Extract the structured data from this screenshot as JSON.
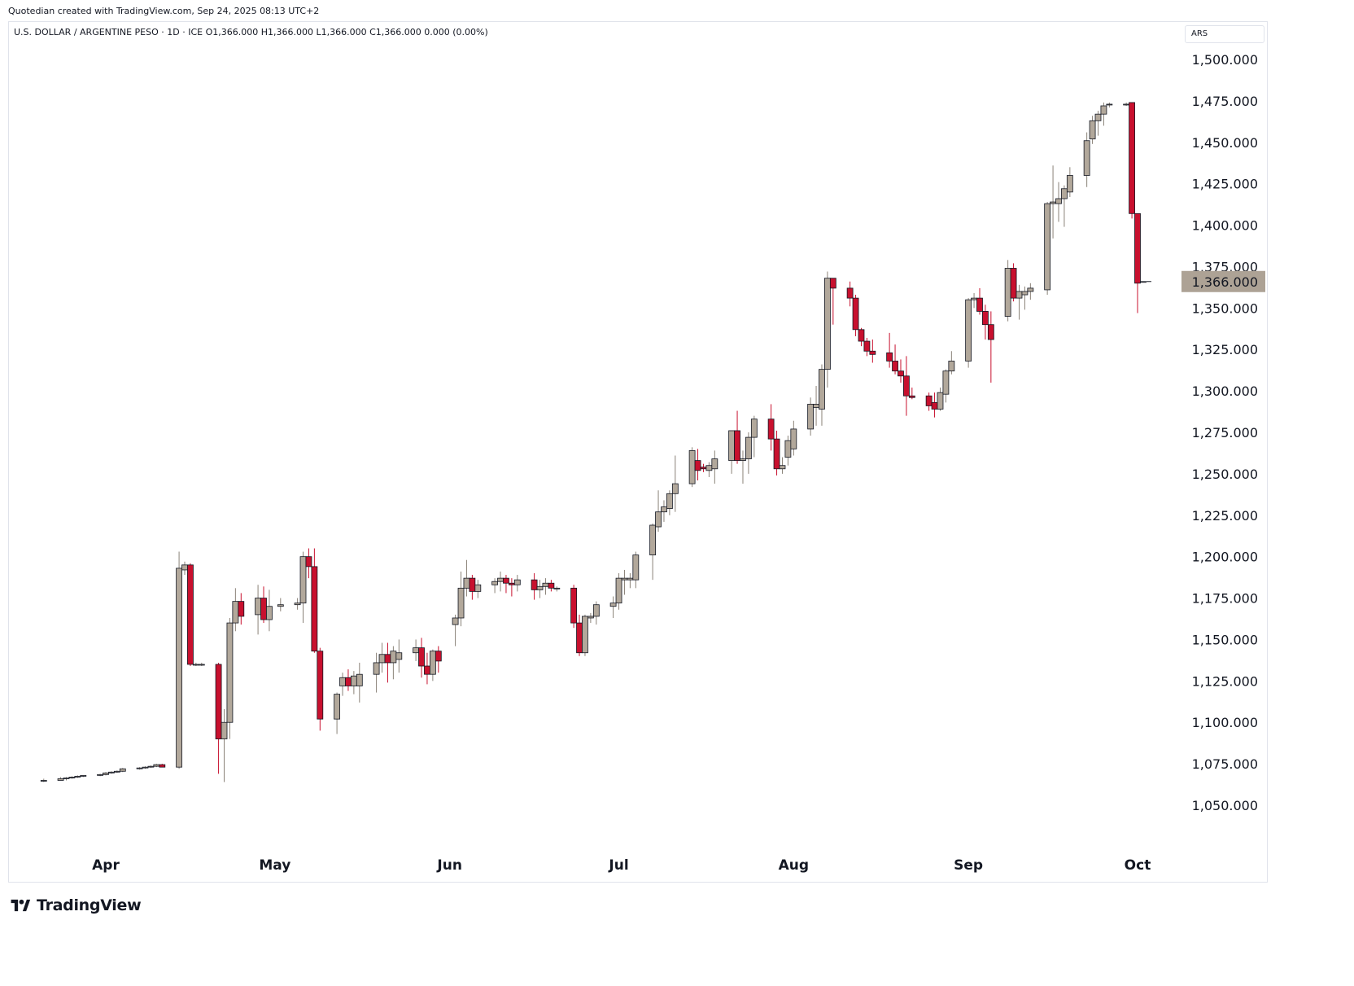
{
  "header": {
    "credit": "Quotedian created with TradingView.com, Sep 24, 2025 08:13 UTC+2",
    "legend": "U.S. DOLLAR / ARGENTINE PESO · 1D · ICE   O1,366.000   H1,366.000   L1,366.000   C1,366.000   0.000 (0.00%)",
    "currency": "ARS"
  },
  "footer": {
    "brand": "TradingView"
  },
  "colors": {
    "up": "#b2a89b",
    "down": "#c8102e",
    "axis_text": "#131722",
    "last_label_bg": "#ada295"
  },
  "chart_data": {
    "type": "candlestick",
    "symbol": "U.S. DOLLAR / ARGENTINE PESO",
    "interval": "1D",
    "exchange": "ICE",
    "ohlc_legend": {
      "open": "1,366.000",
      "high": "1,366.000",
      "low": "1,366.000",
      "close": "1,366.000",
      "change": "0.000 (0.00%)"
    },
    "last_price_label": "1,366.000",
    "last_price": 1366,
    "y_ticks": [
      1050,
      1075,
      1100,
      1125,
      1150,
      1175,
      1200,
      1225,
      1250,
      1275,
      1300,
      1325,
      1350,
      1375,
      1400,
      1425,
      1450,
      1475,
      1500
    ],
    "y_tick_labels": [
      "1,050.000",
      "1,075.000",
      "1,100.000",
      "1,125.000",
      "1,150.000",
      "1,175.000",
      "1,200.000",
      "1,225.000",
      "1,250.000",
      "1,275.000",
      "1,300.000",
      "1,325.000",
      "1,350.000",
      "1,375.000",
      "1,400.000",
      "1,425.000",
      "1,450.000",
      "1,475.000",
      "1,500.000"
    ],
    "x_labels": [
      "Apr",
      "May",
      "Jun",
      "Jul",
      "Aug",
      "Sep",
      "Oct"
    ],
    "x_label_dates": [
      "2025-04-01",
      "2025-05-01",
      "2025-06-01",
      "2025-07-01",
      "2025-08-01",
      "2025-09-01",
      "2025-10-01"
    ],
    "grid": false,
    "candles": [
      {
        "d": "2025-03-21",
        "o": 1065,
        "h": 1066,
        "l": 1064,
        "c": 1065
      },
      {
        "d": "2025-03-24",
        "o": 1065,
        "h": 1067,
        "l": 1065,
        "c": 1066
      },
      {
        "d": "2025-03-25",
        "o": 1066,
        "h": 1067,
        "l": 1065,
        "c": 1066.5
      },
      {
        "d": "2025-03-26",
        "o": 1066.5,
        "h": 1067.5,
        "l": 1066,
        "c": 1067
      },
      {
        "d": "2025-03-27",
        "o": 1067,
        "h": 1068,
        "l": 1066.5,
        "c": 1067.5
      },
      {
        "d": "2025-03-28",
        "o": 1067.5,
        "h": 1068,
        "l": 1067,
        "c": 1068
      },
      {
        "d": "2025-03-31",
        "o": 1068,
        "h": 1069,
        "l": 1067.5,
        "c": 1068.5
      },
      {
        "d": "2025-04-01",
        "o": 1068.5,
        "h": 1070,
        "l": 1068,
        "c": 1069.5
      },
      {
        "d": "2025-04-02",
        "o": 1069.5,
        "h": 1070.5,
        "l": 1069,
        "c": 1070
      },
      {
        "d": "2025-04-03",
        "o": 1070,
        "h": 1071,
        "l": 1069.5,
        "c": 1070.5
      },
      {
        "d": "2025-04-04",
        "o": 1070.5,
        "h": 1072.5,
        "l": 1070,
        "c": 1072
      },
      {
        "d": "2025-04-07",
        "o": 1072,
        "h": 1073,
        "l": 1071.5,
        "c": 1072.5
      },
      {
        "d": "2025-04-08",
        "o": 1072.5,
        "h": 1073.5,
        "l": 1072,
        "c": 1073
      },
      {
        "d": "2025-04-09",
        "o": 1073,
        "h": 1074,
        "l": 1072.5,
        "c": 1073.5
      },
      {
        "d": "2025-04-10",
        "o": 1073.5,
        "h": 1075,
        "l": 1073,
        "c": 1074.5
      },
      {
        "d": "2025-04-11",
        "o": 1074.5,
        "h": 1075,
        "l": 1073.5,
        "c": 1073
      },
      {
        "d": "2025-04-14",
        "o": 1073,
        "h": 1203,
        "l": 1072,
        "c": 1193
      },
      {
        "d": "2025-04-15",
        "o": 1192,
        "h": 1197,
        "l": 1189,
        "c": 1195
      },
      {
        "d": "2025-04-16",
        "o": 1195,
        "h": 1196,
        "l": 1134,
        "c": 1135
      },
      {
        "d": "2025-04-17",
        "o": 1135,
        "h": 1136,
        "l": 1134,
        "c": 1135
      },
      {
        "d": "2025-04-18",
        "o": 1135,
        "h": 1136,
        "l": 1134,
        "c": 1135
      },
      {
        "d": "2025-04-21",
        "o": 1135,
        "h": 1136,
        "l": 1069,
        "c": 1090
      },
      {
        "d": "2025-04-22",
        "o": 1090,
        "h": 1108,
        "l": 1064,
        "c": 1100
      },
      {
        "d": "2025-04-23",
        "o": 1100,
        "h": 1163,
        "l": 1090,
        "c": 1160
      },
      {
        "d": "2025-04-24",
        "o": 1160,
        "h": 1181,
        "l": 1155,
        "c": 1173
      },
      {
        "d": "2025-04-25",
        "o": 1173,
        "h": 1178,
        "l": 1159,
        "c": 1164
      },
      {
        "d": "2025-04-28",
        "o": 1165,
        "h": 1183,
        "l": 1153,
        "c": 1175
      },
      {
        "d": "2025-04-29",
        "o": 1175,
        "h": 1182,
        "l": 1160,
        "c": 1162
      },
      {
        "d": "2025-04-30",
        "o": 1162,
        "h": 1180,
        "l": 1155,
        "c": 1170
      },
      {
        "d": "2025-05-02",
        "o": 1170,
        "h": 1175,
        "l": 1167,
        "c": 1171
      },
      {
        "d": "2025-05-05",
        "o": 1171,
        "h": 1175,
        "l": 1168,
        "c": 1172
      },
      {
        "d": "2025-05-06",
        "o": 1172,
        "h": 1203,
        "l": 1160,
        "c": 1200
      },
      {
        "d": "2025-05-07",
        "o": 1200,
        "h": 1205,
        "l": 1187,
        "c": 1194
      },
      {
        "d": "2025-05-08",
        "o": 1194,
        "h": 1205,
        "l": 1142,
        "c": 1143
      },
      {
        "d": "2025-05-09",
        "o": 1143,
        "h": 1145,
        "l": 1095,
        "c": 1102
      },
      {
        "d": "2025-05-12",
        "o": 1102,
        "h": 1118,
        "l": 1093,
        "c": 1117
      },
      {
        "d": "2025-05-13",
        "o": 1122,
        "h": 1130,
        "l": 1116,
        "c": 1127
      },
      {
        "d": "2025-05-14",
        "o": 1127,
        "h": 1132,
        "l": 1119,
        "c": 1122
      },
      {
        "d": "2025-05-15",
        "o": 1122,
        "h": 1131,
        "l": 1117,
        "c": 1128
      },
      {
        "d": "2025-05-16",
        "o": 1122,
        "h": 1136,
        "l": 1112,
        "c": 1129
      },
      {
        "d": "2025-05-19",
        "o": 1129,
        "h": 1142,
        "l": 1118,
        "c": 1136
      },
      {
        "d": "2025-05-20",
        "o": 1136,
        "h": 1148,
        "l": 1130,
        "c": 1141
      },
      {
        "d": "2025-05-21",
        "o": 1141,
        "h": 1148,
        "l": 1124,
        "c": 1136
      },
      {
        "d": "2025-05-22",
        "o": 1136,
        "h": 1146,
        "l": 1126,
        "c": 1143
      },
      {
        "d": "2025-05-23",
        "o": 1138,
        "h": 1150,
        "l": 1130,
        "c": 1142
      },
      {
        "d": "2025-05-26",
        "o": 1142,
        "h": 1150,
        "l": 1137,
        "c": 1145
      },
      {
        "d": "2025-05-27",
        "o": 1145,
        "h": 1151,
        "l": 1127,
        "c": 1134
      },
      {
        "d": "2025-05-28",
        "o": 1134,
        "h": 1142,
        "l": 1123,
        "c": 1129
      },
      {
        "d": "2025-05-29",
        "o": 1129,
        "h": 1144,
        "l": 1125,
        "c": 1143
      },
      {
        "d": "2025-05-30",
        "o": 1143,
        "h": 1146,
        "l": 1130,
        "c": 1137
      },
      {
        "d": "2025-06-02",
        "o": 1159,
        "h": 1165,
        "l": 1146,
        "c": 1163
      },
      {
        "d": "2025-06-03",
        "o": 1163,
        "h": 1191,
        "l": 1158,
        "c": 1181
      },
      {
        "d": "2025-06-04",
        "o": 1181,
        "h": 1198,
        "l": 1176,
        "c": 1187
      },
      {
        "d": "2025-06-05",
        "o": 1187,
        "h": 1189,
        "l": 1174,
        "c": 1179
      },
      {
        "d": "2025-06-06",
        "o": 1179,
        "h": 1186,
        "l": 1175,
        "c": 1183
      },
      {
        "d": "2025-06-09",
        "o": 1183,
        "h": 1187,
        "l": 1178,
        "c": 1185
      },
      {
        "d": "2025-06-10",
        "o": 1185,
        "h": 1191,
        "l": 1179,
        "c": 1187
      },
      {
        "d": "2025-06-11",
        "o": 1187,
        "h": 1189,
        "l": 1178,
        "c": 1184
      },
      {
        "d": "2025-06-12",
        "o": 1184,
        "h": 1187,
        "l": 1176,
        "c": 1183
      },
      {
        "d": "2025-06-13",
        "o": 1183,
        "h": 1189,
        "l": 1179,
        "c": 1186
      },
      {
        "d": "2025-06-16",
        "o": 1186,
        "h": 1190,
        "l": 1174,
        "c": 1180
      },
      {
        "d": "2025-06-17",
        "o": 1180,
        "h": 1186,
        "l": 1175,
        "c": 1182
      },
      {
        "d": "2025-06-18",
        "o": 1182,
        "h": 1187,
        "l": 1177,
        "c": 1184
      },
      {
        "d": "2025-06-19",
        "o": 1184,
        "h": 1186,
        "l": 1179,
        "c": 1181
      },
      {
        "d": "2025-06-20",
        "o": 1181,
        "h": 1182,
        "l": 1179,
        "c": 1181
      },
      {
        "d": "2025-06-23",
        "o": 1181,
        "h": 1183,
        "l": 1157,
        "c": 1160
      },
      {
        "d": "2025-06-24",
        "o": 1160,
        "h": 1165,
        "l": 1140,
        "c": 1142
      },
      {
        "d": "2025-06-25",
        "o": 1142,
        "h": 1165,
        "l": 1140,
        "c": 1164
      },
      {
        "d": "2025-06-26",
        "o": 1163,
        "h": 1166,
        "l": 1160,
        "c": 1164
      },
      {
        "d": "2025-06-27",
        "o": 1164,
        "h": 1173,
        "l": 1159,
        "c": 1171
      },
      {
        "d": "2025-06-30",
        "o": 1170,
        "h": 1176,
        "l": 1163,
        "c": 1172
      },
      {
        "d": "2025-07-01",
        "o": 1172,
        "h": 1190,
        "l": 1168,
        "c": 1187
      },
      {
        "d": "2025-07-02",
        "o": 1186,
        "h": 1192,
        "l": 1177,
        "c": 1187
      },
      {
        "d": "2025-07-03",
        "o": 1186,
        "h": 1190,
        "l": 1181,
        "c": 1187
      },
      {
        "d": "2025-07-04",
        "o": 1186,
        "h": 1203,
        "l": 1181,
        "c": 1201
      },
      {
        "d": "2025-07-07",
        "o": 1201,
        "h": 1220,
        "l": 1186,
        "c": 1219
      },
      {
        "d": "2025-07-08",
        "o": 1218,
        "h": 1240,
        "l": 1215,
        "c": 1227
      },
      {
        "d": "2025-07-09",
        "o": 1227,
        "h": 1234,
        "l": 1221,
        "c": 1230
      },
      {
        "d": "2025-07-10",
        "o": 1229,
        "h": 1240,
        "l": 1225,
        "c": 1238
      },
      {
        "d": "2025-07-11",
        "o": 1238,
        "h": 1261,
        "l": 1227,
        "c": 1244
      },
      {
        "d": "2025-07-14",
        "o": 1244,
        "h": 1266,
        "l": 1242,
        "c": 1264
      },
      {
        "d": "2025-07-15",
        "o": 1258,
        "h": 1265,
        "l": 1246,
        "c": 1252
      },
      {
        "d": "2025-07-16",
        "o": 1254,
        "h": 1256,
        "l": 1251,
        "c": 1253
      },
      {
        "d": "2025-07-17",
        "o": 1252,
        "h": 1257,
        "l": 1248,
        "c": 1255
      },
      {
        "d": "2025-07-18",
        "o": 1253,
        "h": 1264,
        "l": 1244,
        "c": 1259
      },
      {
        "d": "2025-07-21",
        "o": 1258,
        "h": 1276,
        "l": 1250,
        "c": 1276
      },
      {
        "d": "2025-07-22",
        "o": 1276,
        "h": 1288,
        "l": 1256,
        "c": 1258
      },
      {
        "d": "2025-07-23",
        "o": 1258,
        "h": 1264,
        "l": 1244,
        "c": 1259
      },
      {
        "d": "2025-07-24",
        "o": 1259,
        "h": 1275,
        "l": 1250,
        "c": 1272
      },
      {
        "d": "2025-07-25",
        "o": 1272,
        "h": 1285,
        "l": 1260,
        "c": 1283
      },
      {
        "d": "2025-07-28",
        "o": 1283,
        "h": 1292,
        "l": 1264,
        "c": 1271
      },
      {
        "d": "2025-07-29",
        "o": 1271,
        "h": 1276,
        "l": 1249,
        "c": 1253
      },
      {
        "d": "2025-07-30",
        "o": 1253,
        "h": 1260,
        "l": 1250,
        "c": 1255
      },
      {
        "d": "2025-07-31",
        "o": 1260,
        "h": 1273,
        "l": 1255,
        "c": 1270
      },
      {
        "d": "2025-08-01",
        "o": 1265,
        "h": 1282,
        "l": 1261,
        "c": 1277
      },
      {
        "d": "2025-08-04",
        "o": 1277,
        "h": 1296,
        "l": 1273,
        "c": 1292
      },
      {
        "d": "2025-08-05",
        "o": 1290,
        "h": 1303,
        "l": 1279,
        "c": 1292
      },
      {
        "d": "2025-08-06",
        "o": 1289,
        "h": 1316,
        "l": 1279,
        "c": 1313
      },
      {
        "d": "2025-08-07",
        "o": 1313,
        "h": 1372,
        "l": 1302,
        "c": 1368
      },
      {
        "d": "2025-08-08",
        "o": 1368,
        "h": 1368,
        "l": 1340,
        "c": 1362
      },
      {
        "d": "2025-08-11",
        "o": 1362,
        "h": 1366,
        "l": 1351,
        "c": 1356
      },
      {
        "d": "2025-08-12",
        "o": 1356,
        "h": 1358,
        "l": 1333,
        "c": 1337
      },
      {
        "d": "2025-08-13",
        "o": 1337,
        "h": 1338,
        "l": 1327,
        "c": 1330
      },
      {
        "d": "2025-08-14",
        "o": 1330,
        "h": 1332,
        "l": 1321,
        "c": 1324
      },
      {
        "d": "2025-08-15",
        "o": 1324,
        "h": 1331,
        "l": 1317,
        "c": 1322
      },
      {
        "d": "2025-08-18",
        "o": 1323,
        "h": 1335,
        "l": 1314,
        "c": 1318
      },
      {
        "d": "2025-08-19",
        "o": 1318,
        "h": 1328,
        "l": 1310,
        "c": 1312
      },
      {
        "d": "2025-08-20",
        "o": 1312,
        "h": 1319,
        "l": 1305,
        "c": 1309
      },
      {
        "d": "2025-08-21",
        "o": 1309,
        "h": 1321,
        "l": 1285,
        "c": 1297
      },
      {
        "d": "2025-08-22",
        "o": 1297,
        "h": 1302,
        "l": 1295,
        "c": 1296
      },
      {
        "d": "2025-08-25",
        "o": 1297,
        "h": 1299,
        "l": 1288,
        "c": 1291
      },
      {
        "d": "2025-08-26",
        "o": 1293,
        "h": 1299,
        "l": 1284,
        "c": 1289
      },
      {
        "d": "2025-08-27",
        "o": 1289,
        "h": 1302,
        "l": 1288,
        "c": 1299
      },
      {
        "d": "2025-08-28",
        "o": 1298,
        "h": 1313,
        "l": 1293,
        "c": 1312
      },
      {
        "d": "2025-08-29",
        "o": 1312,
        "h": 1324,
        "l": 1310,
        "c": 1318
      },
      {
        "d": "2025-09-01",
        "o": 1318,
        "h": 1356,
        "l": 1314,
        "c": 1355
      },
      {
        "d": "2025-09-02",
        "o": 1355,
        "h": 1359,
        "l": 1350,
        "c": 1356
      },
      {
        "d": "2025-09-03",
        "o": 1356,
        "h": 1362,
        "l": 1346,
        "c": 1348
      },
      {
        "d": "2025-09-04",
        "o": 1348,
        "h": 1352,
        "l": 1331,
        "c": 1340
      },
      {
        "d": "2025-09-05",
        "o": 1340,
        "h": 1348,
        "l": 1305,
        "c": 1331
      },
      {
        "d": "2025-09-08",
        "o": 1345,
        "h": 1379,
        "l": 1342,
        "c": 1374
      },
      {
        "d": "2025-09-09",
        "o": 1374,
        "h": 1377,
        "l": 1354,
        "c": 1356
      },
      {
        "d": "2025-09-10",
        "o": 1356,
        "h": 1364,
        "l": 1343,
        "c": 1360
      },
      {
        "d": "2025-09-11",
        "o": 1358,
        "h": 1363,
        "l": 1349,
        "c": 1360
      },
      {
        "d": "2025-09-12",
        "o": 1360,
        "h": 1365,
        "l": 1355,
        "c": 1362
      },
      {
        "d": "2025-09-15",
        "o": 1361,
        "h": 1414,
        "l": 1358,
        "c": 1413
      },
      {
        "d": "2025-09-16",
        "o": 1413,
        "h": 1436,
        "l": 1392,
        "c": 1414
      },
      {
        "d": "2025-09-17",
        "o": 1413,
        "h": 1426,
        "l": 1402,
        "c": 1416
      },
      {
        "d": "2025-09-18",
        "o": 1416,
        "h": 1424,
        "l": 1399,
        "c": 1422
      },
      {
        "d": "2025-09-19",
        "o": 1420,
        "h": 1435,
        "l": 1417,
        "c": 1430
      },
      {
        "d": "2025-09-22",
        "o": 1430,
        "h": 1456,
        "l": 1423,
        "c": 1451
      },
      {
        "d": "2025-09-23",
        "o": 1452,
        "h": 1466,
        "l": 1449,
        "c": 1463
      },
      {
        "d": "2025-09-24",
        "o": 1463,
        "h": 1469,
        "l": 1454,
        "c": 1467
      },
      {
        "d": "2025-09-25",
        "o": 1467,
        "h": 1474,
        "l": 1460,
        "c": 1472
      },
      {
        "d": "2025-09-26",
        "o": 1473,
        "h": 1474,
        "l": 1471,
        "c": 1473
      },
      {
        "d": "2025-09-29",
        "o": 1473,
        "h": 1474,
        "l": 1472,
        "c": 1473
      },
      {
        "d": "2025-09-30",
        "o": 1474,
        "h": 1474,
        "l": 1404,
        "c": 1407
      },
      {
        "d": "2025-10-01",
        "o": 1407,
        "h": 1407,
        "l": 1347,
        "c": 1365
      },
      {
        "d": "2025-10-02",
        "o": 1366,
        "h": 1366,
        "l": 1366,
        "c": 1366
      }
    ]
  }
}
